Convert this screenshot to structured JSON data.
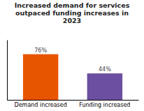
{
  "chart_data": {
    "type": "bar",
    "title": "Increased demand for services\noutpaced funding increases in\n2023",
    "categories": [
      "Demand increased",
      "Funding increased"
    ],
    "values": [
      76,
      44
    ],
    "value_labels": [
      "76%",
      "44%"
    ],
    "colors": [
      "#e85500",
      "#6b4fa0"
    ],
    "ylim": [
      0,
      100
    ],
    "data_labels": true,
    "tick_labels": "x",
    "grid": false
  }
}
